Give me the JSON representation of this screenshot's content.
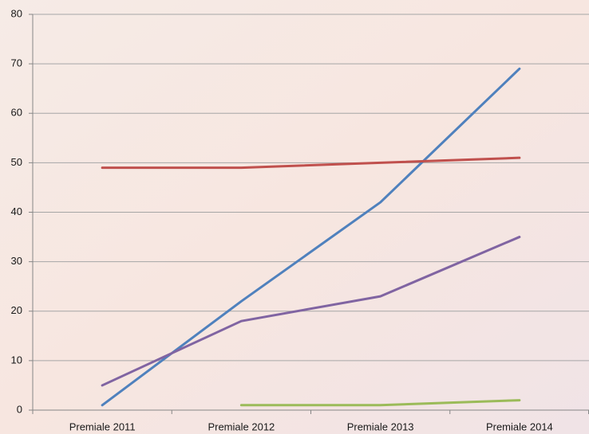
{
  "chart_data": {
    "type": "line",
    "categories": [
      "Premiale 2011",
      "Premiale 2012",
      "Premiale 2013",
      "Premiale 2014"
    ],
    "series": [
      {
        "color": "#4f81bd",
        "values": [
          1,
          22,
          42,
          69
        ]
      },
      {
        "color": "#c0504d",
        "values": [
          49,
          49,
          50,
          51
        ]
      },
      {
        "color": "#8064a2",
        "values": [
          5,
          18,
          23,
          35
        ]
      },
      {
        "color": "#9bbb59",
        "values": [
          null,
          1,
          1,
          2
        ]
      }
    ],
    "ylim": [
      0,
      80
    ],
    "yticks": [
      0,
      10,
      20,
      30,
      40,
      50,
      60,
      70,
      80
    ],
    "grid": true
  }
}
